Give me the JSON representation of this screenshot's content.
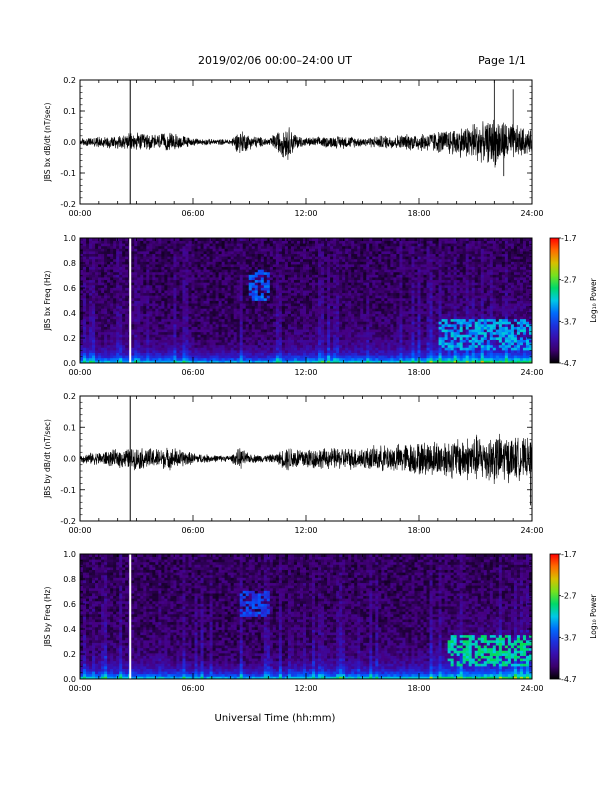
{
  "header": {
    "title": "2019/02/06  00:00–24:00 UT",
    "page": "Page 1/1"
  },
  "footer": {
    "xlabel": "Universal Time (hh:mm)"
  },
  "chart_data": [
    {
      "type": "line",
      "ylabel": "JBS bx dB/dt (nT/sec)",
      "xlim_hours": [
        0,
        24
      ],
      "ylim": [
        -0.2,
        0.2
      ],
      "x_ticks": [
        "00:00",
        "06:00",
        "12:00",
        "18:00",
        "24:00"
      ],
      "y_ticks": [
        "0.2",
        "0.1",
        "0.0",
        "-0.1",
        "-0.2"
      ],
      "spike_time": "02:40",
      "envelope": {
        "x_hours": [
          0,
          1,
          2,
          3,
          4,
          5,
          6,
          7,
          8,
          8.5,
          9,
          10,
          10.5,
          11,
          11.5,
          12,
          13,
          14,
          15,
          16,
          17,
          18,
          19,
          20,
          20.5,
          21,
          21.5,
          22,
          22.5,
          23,
          23.5,
          24
        ],
        "amplitude": [
          0.01,
          0.015,
          0.02,
          0.025,
          0.022,
          0.025,
          0.01,
          0.008,
          0.008,
          0.035,
          0.02,
          0.01,
          0.03,
          0.05,
          0.02,
          0.012,
          0.015,
          0.018,
          0.012,
          0.018,
          0.02,
          0.025,
          0.03,
          0.04,
          0.045,
          0.06,
          0.05,
          0.07,
          0.06,
          0.05,
          0.04,
          0.03
        ]
      },
      "peaks": [
        {
          "time": "22:00",
          "value": 0.2
        },
        {
          "time": "23:00",
          "value": 0.17
        },
        {
          "time": "22:30",
          "value": -0.11
        }
      ]
    },
    {
      "type": "heatmap",
      "ylabel": "JBS bx Freq (Hz)",
      "colorbar_label": "Log₁₀ Power",
      "xlim_hours": [
        0,
        24
      ],
      "ylim": [
        0,
        1.0
      ],
      "x_ticks": [
        "00:00",
        "06:00",
        "12:00",
        "18:00",
        "24:00"
      ],
      "y_ticks": [
        "1.0",
        "0.8",
        "0.6",
        "0.4",
        "0.2",
        "0.0"
      ],
      "colorbar_ticks": [
        "-1.7",
        "-2.7",
        "-3.7",
        "-4.7"
      ],
      "clim": [
        -4.7,
        -1.7
      ],
      "features": [
        {
          "time": "02:40",
          "kind": "white gap"
        },
        {
          "time": "09:00–10:00",
          "freq": "0.5–0.75 Hz",
          "level": -3.2
        },
        {
          "time": "19:00–24:00",
          "freq": "0.1–0.35 Hz",
          "level": -2.9
        }
      ]
    },
    {
      "type": "line",
      "ylabel": "JBS by dB/dt (nT/sec)",
      "xlim_hours": [
        0,
        24
      ],
      "ylim": [
        -0.2,
        0.2
      ],
      "x_ticks": [
        "00:00",
        "06:00",
        "12:00",
        "18:00",
        "24:00"
      ],
      "y_ticks": [
        "0.2",
        "0.1",
        "0.0",
        "-0.1",
        "-0.2"
      ],
      "spike_time": "02:40",
      "envelope": {
        "x_hours": [
          0,
          1,
          2,
          3,
          4,
          5,
          6,
          7,
          8,
          8.5,
          9,
          10,
          10.5,
          11,
          11.5,
          12,
          13,
          14,
          15,
          16,
          17,
          18,
          19,
          20,
          20.5,
          21,
          21.5,
          22,
          22.5,
          23,
          23.5,
          24
        ],
        "amplitude": [
          0.012,
          0.018,
          0.025,
          0.03,
          0.028,
          0.03,
          0.015,
          0.01,
          0.008,
          0.03,
          0.012,
          0.01,
          0.015,
          0.035,
          0.03,
          0.03,
          0.028,
          0.03,
          0.03,
          0.035,
          0.04,
          0.045,
          0.05,
          0.055,
          0.06,
          0.065,
          0.06,
          0.07,
          0.065,
          0.06,
          0.055,
          0.05
        ]
      },
      "peaks": [
        {
          "time": "23:55",
          "value": -0.15
        }
      ]
    },
    {
      "type": "heatmap",
      "ylabel": "JBS by Freq (Hz)",
      "colorbar_label": "Log₁₀ Power",
      "xlim_hours": [
        0,
        24
      ],
      "ylim": [
        0,
        1.0
      ],
      "x_ticks": [
        "00:00",
        "06:00",
        "12:00",
        "18:00",
        "24:00"
      ],
      "y_ticks": [
        "1.0",
        "0.8",
        "0.6",
        "0.4",
        "0.2",
        "0.0"
      ],
      "colorbar_ticks": [
        "-1.7",
        "-2.7",
        "-3.7",
        "-4.7"
      ],
      "clim": [
        -4.7,
        -1.7
      ],
      "features": [
        {
          "time": "02:40",
          "kind": "white gap"
        },
        {
          "time": "08:30–10:00",
          "freq": "0.5–0.7 Hz",
          "level": -3.3
        },
        {
          "time": "19:30–24:00",
          "freq": "0.1–0.35 Hz",
          "level": -2.6
        }
      ]
    }
  ]
}
